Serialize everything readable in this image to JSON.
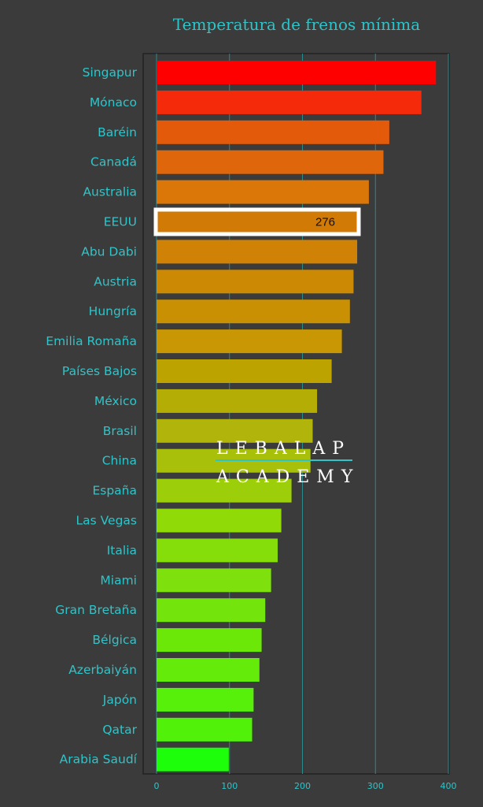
{
  "chart_data": {
    "type": "bar",
    "orientation": "horizontal",
    "title": "Temperatura de frenos mínima",
    "xlabel": "",
    "ylabel": "",
    "categories": [
      "Singapur",
      "Mónaco",
      "Baréin",
      "Canadá",
      "Australia",
      "EEUU",
      "Abu Dabi",
      "Austria",
      "Hungría",
      "Emilia Romaña",
      "Países Bajos",
      "México",
      "Brasil",
      "China",
      "España",
      "Las Vegas",
      "Italia",
      "Miami",
      "Gran Bretaña",
      "Bélgica",
      "Azerbaiyán",
      "Japón",
      "Qatar",
      "Arabia Saudí"
    ],
    "values": [
      383,
      363,
      319,
      311,
      291,
      276,
      275,
      270,
      265,
      254,
      240,
      220,
      214,
      211,
      185,
      171,
      166,
      157,
      149,
      144,
      141,
      133,
      131,
      99
    ],
    "colors": [
      "#ff0000",
      "#f52a0b",
      "#e35a0a",
      "#e0660b",
      "#db7709",
      "#d17b06",
      "#cf8205",
      "#cc8903",
      "#c99003",
      "#c89703",
      "#bda300",
      "#b3ad06",
      "#b1b40a",
      "#a9c00b",
      "#9ccf09",
      "#90da08",
      "#85dd09",
      "#7ee00c",
      "#73e50c",
      "#6ce808",
      "#65eb0a",
      "#56f00a",
      "#51f10a",
      "#1dfe0b"
    ],
    "xlim": [
      0,
      400
    ],
    "xticks": [
      "0",
      "100",
      "200",
      "300",
      "400"
    ],
    "grid": true,
    "highlight": {
      "category": "EEUU",
      "label": "276"
    }
  },
  "watermark": {
    "line1": "LEBALAP",
    "line2": "ACADEMY"
  },
  "theme": {
    "background": "#3b3b3b",
    "text": "#2fc4c9",
    "grid": "#2a8a8c"
  }
}
